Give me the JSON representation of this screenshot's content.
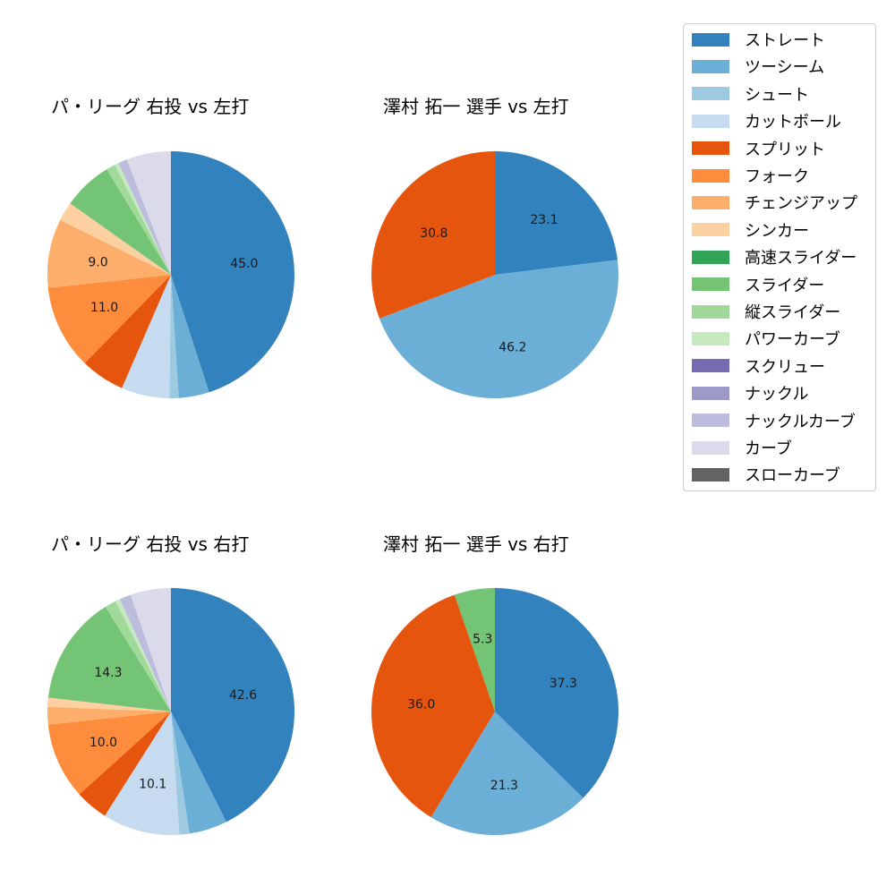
{
  "chart_data": [
    {
      "type": "pie",
      "title": "パ・リーグ 右投 vs 左打",
      "categories": [
        "ストレート",
        "ツーシーム",
        "シュート",
        "カットボール",
        "スプリット",
        "フォーク",
        "チェンジアップ",
        "シンカー",
        "スライダー",
        "縦スライダー",
        "パワーカーブ",
        "ナックルカーブ",
        "カーブ"
      ],
      "values": [
        45.0,
        4.0,
        1.2,
        6.3,
        5.8,
        11.0,
        9.0,
        2.5,
        6.5,
        1.2,
        0.5,
        1.2,
        5.8
      ],
      "labels_shown": [
        "45.0",
        "",
        "",
        "",
        "",
        "11.0",
        "9.0",
        "",
        "",
        "",
        "",
        "",
        ""
      ]
    },
    {
      "type": "pie",
      "title": "澤村 拓一 選手 vs 左打",
      "categories": [
        "ストレート",
        "ツーシーム",
        "スプリット"
      ],
      "values": [
        23.1,
        46.2,
        30.8
      ],
      "labels_shown": [
        "23.1",
        "46.2",
        "30.8"
      ]
    },
    {
      "type": "pie",
      "title": "パ・リーグ 右投 vs 右打",
      "categories": [
        "ストレート",
        "ツーシーム",
        "シュート",
        "カットボール",
        "スプリット",
        "フォーク",
        "チェンジアップ",
        "シンカー",
        "スライダー",
        "縦スライダー",
        "パワーカーブ",
        "ナックルカーブ",
        "カーブ"
      ],
      "values": [
        42.6,
        5.0,
        1.3,
        10.1,
        4.3,
        10.0,
        2.3,
        1.2,
        14.3,
        1.5,
        0.6,
        1.5,
        5.3
      ],
      "labels_shown": [
        "42.6",
        "",
        "",
        "10.1",
        "",
        "10.0",
        "",
        "",
        "14.3",
        "",
        "",
        "",
        ""
      ]
    },
    {
      "type": "pie",
      "title": "澤村 拓一 選手 vs 右打",
      "categories": [
        "ストレート",
        "ツーシーム",
        "スプリット",
        "スライダー"
      ],
      "values": [
        37.3,
        21.3,
        36.0,
        5.3
      ],
      "labels_shown": [
        "37.3",
        "21.3",
        "36.0",
        "5.3"
      ]
    }
  ],
  "colors": {
    "ストレート": "#3182bd",
    "ツーシーム": "#6baed6",
    "シュート": "#9ecae1",
    "カットボール": "#c6dbef",
    "スプリット": "#e6550d",
    "フォーク": "#fd8d3c",
    "チェンジアップ": "#fdae6b",
    "シンカー": "#fdd0a2",
    "高速スライダー": "#31a354",
    "スライダー": "#74c476",
    "縦スライダー": "#a1d99b",
    "パワーカーブ": "#c7e9c0",
    "スクリュー": "#756bb1",
    "ナックル": "#9e9ac8",
    "ナックルカーブ": "#bcbddc",
    "カーブ": "#dadaeb",
    "スローカーブ": "#636363"
  },
  "legend": {
    "items": [
      {
        "label": "ストレート",
        "color": "#3182bd"
      },
      {
        "label": "ツーシーム",
        "color": "#6baed6"
      },
      {
        "label": "シュート",
        "color": "#9ecae1"
      },
      {
        "label": "カットボール",
        "color": "#c6dbef"
      },
      {
        "label": "スプリット",
        "color": "#e6550d"
      },
      {
        "label": "フォーク",
        "color": "#fd8d3c"
      },
      {
        "label": "チェンジアップ",
        "color": "#fdae6b"
      },
      {
        "label": "シンカー",
        "color": "#fdd0a2"
      },
      {
        "label": "高速スライダー",
        "color": "#31a354"
      },
      {
        "label": "スライダー",
        "color": "#74c476"
      },
      {
        "label": "縦スライダー",
        "color": "#a1d99b"
      },
      {
        "label": "パワーカーブ",
        "color": "#c7e9c0"
      },
      {
        "label": "スクリュー",
        "color": "#756bb1"
      },
      {
        "label": "ナックル",
        "color": "#9e9ac8"
      },
      {
        "label": "ナックルカーブ",
        "color": "#bcbddc"
      },
      {
        "label": "カーブ",
        "color": "#dadaeb"
      },
      {
        "label": "スローカーブ",
        "color": "#636363"
      }
    ]
  }
}
